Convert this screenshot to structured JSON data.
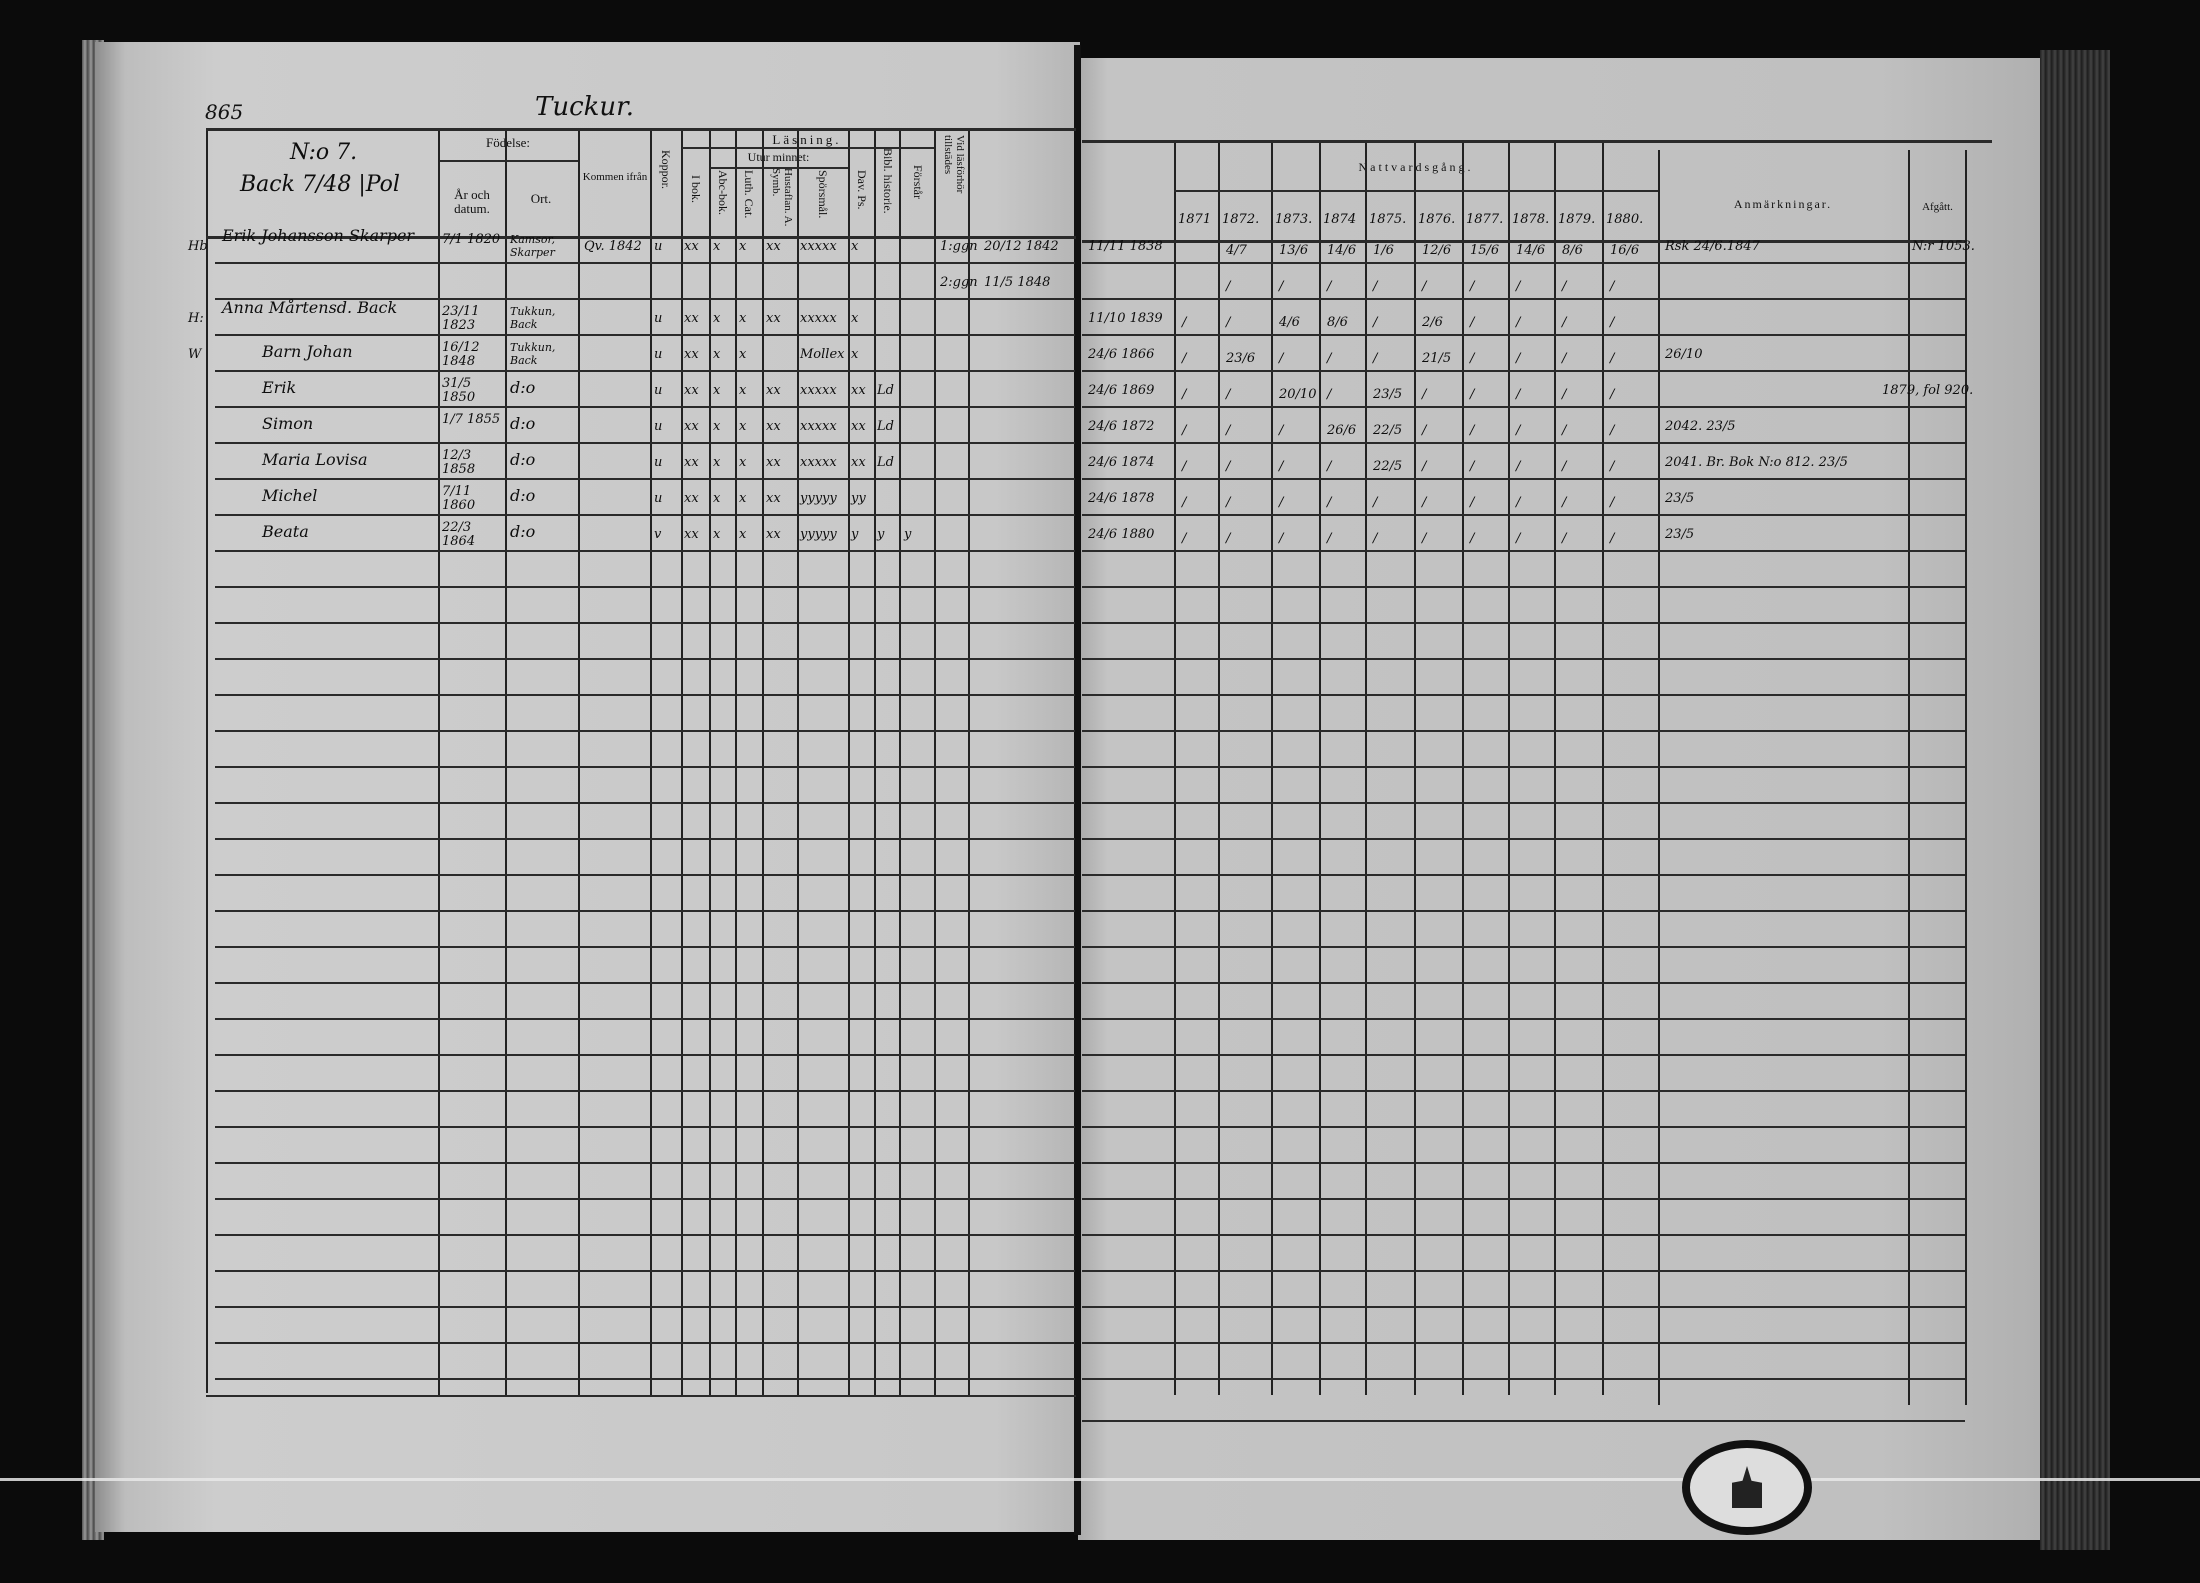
{
  "left_page": {
    "page_number": "865",
    "parish_title": "Tuckur.",
    "household": {
      "number": "N:o 7.",
      "place": "Back 7/48 |Pol"
    },
    "headers": {
      "fodelse": "Födelse:",
      "ar_datum": "År och datum.",
      "ort": "Ort.",
      "kommen": "Kommen ifrån",
      "koppor": "Koppor.",
      "lasning": "Läsning.",
      "i_bok": "I bok.",
      "utur_minnet": "Utur minnet:",
      "abc": "Abc-bok.",
      "luth": "Luth. Cat.",
      "hustafl": "Hustaflan. A. Symb.",
      "sporsmal": "Spörsmål.",
      "dav": "Dav. Ps.",
      "bibl": "Bibl. historie.",
      "forstar": "Förstår",
      "vid_lasforhor": "Vid läsförhör tillstädes"
    },
    "rows": [
      {
        "prefix": "Hb",
        "name": "Erik Johansson Skarper",
        "date": "7/1 1820",
        "place": "Kamsor, Skarper",
        "kommen": "Qv. 1842",
        "koppor": "u",
        "i_bok": "xx",
        "abc": "x",
        "luth": "x",
        "hustafl": "xx",
        "sporsmal": "xxxxx",
        "dav": "x",
        "bibl": "",
        "forstar": "",
        "vid": "1:ggn",
        "extra": "20/12 1842"
      },
      {
        "prefix": "",
        "name": "",
        "date": "",
        "place": "",
        "kommen": "",
        "koppor": "",
        "i_bok": "",
        "abc": "",
        "luth": "",
        "hustafl": "",
        "sporsmal": "",
        "dav": "",
        "bibl": "",
        "forstar": "",
        "vid": "2:ggn",
        "extra": "11/5 1848"
      },
      {
        "prefix": "H:",
        "name": "Anna Mårtensd. Back",
        "date": "23/11 1823",
        "place": "Tukkun, Back",
        "kommen": "",
        "koppor": "u",
        "i_bok": "xx",
        "abc": "x",
        "luth": "x",
        "hustafl": "xx",
        "sporsmal": "xxxxx",
        "dav": "x",
        "bibl": "",
        "forstar": "",
        "vid": "",
        "extra": ""
      },
      {
        "prefix": "W",
        "name": "Barn Johan",
        "date": "16/12 1848",
        "place": "Tukkun, Back",
        "kommen": "",
        "koppor": "u",
        "i_bok": "xx",
        "abc": "x",
        "luth": "x",
        "hustafl": "",
        "sporsmal": "Mollex",
        "dav": "x",
        "bibl": "",
        "forstar": "",
        "vid": "",
        "extra": ""
      },
      {
        "prefix": "",
        "name": "Erik",
        "date": "31/5 1850",
        "place": "d:o",
        "kommen": "",
        "koppor": "u",
        "i_bok": "xx",
        "abc": "x",
        "luth": "x",
        "hustafl": "xx",
        "sporsmal": "xxxxx",
        "dav": "xx",
        "bibl": "Ld",
        "forstar": "",
        "vid": "",
        "extra": ""
      },
      {
        "prefix": "",
        "name": "Simon",
        "date": "1/7 1855",
        "place": "d:o",
        "kommen": "",
        "koppor": "u",
        "i_bok": "xx",
        "abc": "x",
        "luth": "x",
        "hustafl": "xx",
        "sporsmal": "xxxxx",
        "dav": "xx",
        "bibl": "Ld",
        "forstar": "",
        "vid": "",
        "extra": ""
      },
      {
        "prefix": "",
        "name": "Maria Lovisa",
        "date": "12/3 1858",
        "place": "d:o",
        "kommen": "",
        "koppor": "u",
        "i_bok": "xx",
        "abc": "x",
        "luth": "x",
        "hustafl": "xx",
        "sporsmal": "xxxxx",
        "dav": "xx",
        "bibl": "Ld",
        "forstar": "",
        "vid": "",
        "extra": ""
      },
      {
        "prefix": "",
        "name": "Michel",
        "date": "7/11 1860",
        "place": "d:o",
        "kommen": "",
        "koppor": "u",
        "i_bok": "xx",
        "abc": "x",
        "luth": "x",
        "hustafl": "xx",
        "sporsmal": "yyyyy",
        "dav": "yy",
        "bibl": "",
        "forstar": "",
        "vid": "",
        "extra": ""
      },
      {
        "prefix": "",
        "name": "Beata",
        "date": "22/3 1864",
        "place": "d:o",
        "kommen": "",
        "koppor": "v",
        "i_bok": "xx",
        "abc": "x",
        "luth": "x",
        "hustafl": "xx",
        "sporsmal": "yyyyy",
        "dav": "y",
        "bibl": "y",
        "forstar": "y",
        "vid": "",
        "extra": ""
      }
    ]
  },
  "right_page": {
    "headers": {
      "nattvardsgang": "Nattvardsgång.",
      "years": [
        "1871",
        "1872.",
        "1873.",
        "1874",
        "1875.",
        "1876.",
        "1877.",
        "1878.",
        "1879.",
        "1880."
      ],
      "anmarkningar": "Anmärkningar.",
      "afgatt": "Afgått."
    },
    "rows": [
      {
        "admitted": "11/11 1838",
        "communion": [
          "",
          "4/7",
          "13/6",
          "14/6",
          "1/6",
          "12/6",
          "15/6",
          "14/6",
          "8/6",
          "16/6"
        ],
        "remarks": "Rsk 24/6.1847",
        "afgatt": "N:r 1053."
      },
      {
        "admitted": "",
        "communion": [
          "",
          "/",
          "/",
          "/",
          "/",
          "/",
          "/",
          "/",
          "/",
          "/"
        ],
        "remarks": "",
        "afgatt": ""
      },
      {
        "admitted": "11/10 1839",
        "communion": [
          "/",
          "/",
          "4/6",
          "8/6",
          "/",
          "2/6",
          "/",
          "/",
          "/",
          "/"
        ],
        "remarks": "",
        "afgatt": ""
      },
      {
        "admitted": "24/6 1866",
        "communion": [
          "/",
          "23/6",
          "/",
          "/",
          "/",
          "21/5",
          "/",
          "/",
          "/",
          "/"
        ],
        "remarks": "26/10",
        "afgatt": ""
      },
      {
        "admitted": "24/6 1869",
        "communion": [
          "/",
          "/",
          "20/10",
          "/",
          "23/5",
          "/",
          "/",
          "/",
          "/",
          "/"
        ],
        "remarks": "",
        "afgatt": "1879, fol 920."
      },
      {
        "admitted": "24/6 1872",
        "communion": [
          "/",
          "/",
          "/",
          "26/6",
          "22/5",
          "/",
          "/",
          "/",
          "/",
          "/"
        ],
        "remarks": "2042. 23/5",
        "afgatt": ""
      },
      {
        "admitted": "24/6 1874",
        "communion": [
          "/",
          "/",
          "/",
          "/",
          "22/5",
          "/",
          "/",
          "/",
          "/",
          "/"
        ],
        "remarks": "2041. Br. Bok N:o 812. 23/5",
        "afgatt": ""
      },
      {
        "admitted": "24/6 1878",
        "communion": [
          "/",
          "/",
          "/",
          "/",
          "/",
          "/",
          "/",
          "/",
          "/",
          "/"
        ],
        "remarks": "23/5",
        "afgatt": ""
      },
      {
        "admitted": "24/6 1880",
        "communion": [
          "/",
          "/",
          "/",
          "/",
          "/",
          "/",
          "/",
          "/",
          "/",
          "/"
        ],
        "remarks": "23/5",
        "afgatt": ""
      }
    ]
  }
}
